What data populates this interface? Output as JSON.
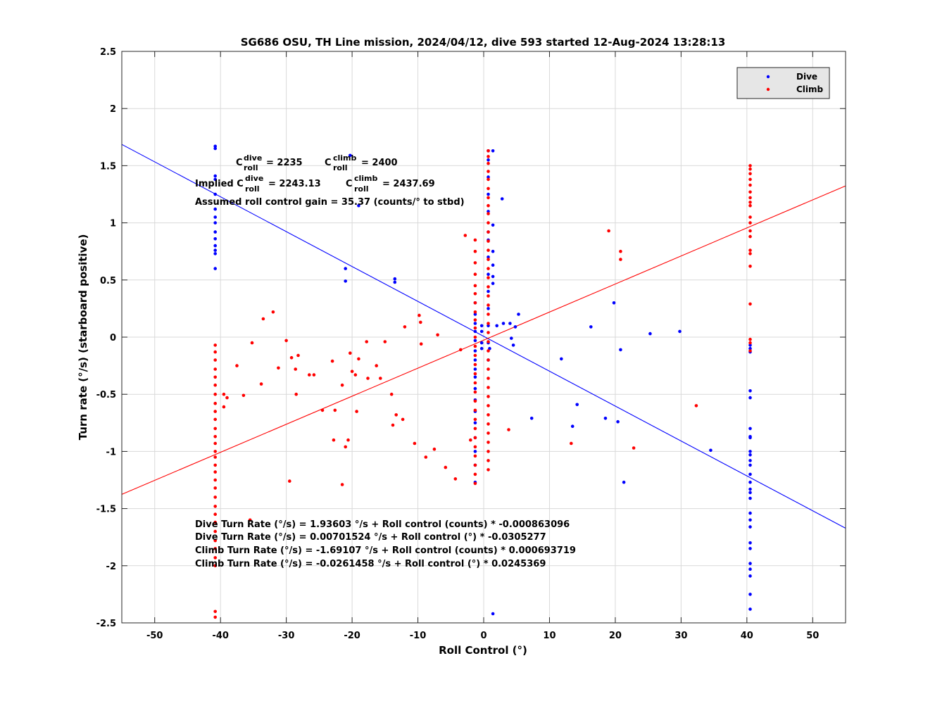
{
  "chart_data": {
    "type": "scatter",
    "title": "SG686 OSU, TH Line mission, 2024/04/12, dive 593 started 12-Aug-2024 13:28:13",
    "xlabel": "Roll Control (°)",
    "ylabel": "Turn rate (°/s) (starboard positive)",
    "xlim": [
      -55,
      55
    ],
    "ylim": [
      -2.5,
      2.5
    ],
    "x_ticks": [
      -50,
      -40,
      -30,
      -20,
      -10,
      0,
      10,
      20,
      30,
      40,
      50
    ],
    "y_ticks": [
      -2.5,
      -2,
      -1.5,
      -1,
      -0.5,
      0,
      0.5,
      1,
      1.5,
      2,
      2.5
    ],
    "grid": true,
    "legend_position": "top-right",
    "annotations": {
      "c_dive_label": "C",
      "c_dive_sup": "dive",
      "c_dive_sub": "roll",
      "c_dive_value": "= 2235",
      "c_climb_label": "C",
      "c_climb_sup": "climb",
      "c_climb_sub": "roll",
      "c_climb_value": "= 2400",
      "implied_prefix": "Implied C",
      "implied_dive_sup": "dive",
      "implied_dive_sub": "roll",
      "implied_dive_value": "= 2243.13",
      "implied_climb_label": "C",
      "implied_climb_sup": "climb",
      "implied_climb_sub": "roll",
      "implied_climb_value": "= 2437.69",
      "gain": "Assumed roll control gain = 35.37 (counts/° to stbd)",
      "eq1": "Dive Turn Rate (°/s) = 1.93603 °/s + Roll control (counts) * -0.000863096",
      "eq2": "Dive Turn Rate (°/s) = 0.00701524 °/s + Roll control (°) * -0.0305277",
      "eq3": "Climb Turn Rate (°/s) = -1.69107 °/s + Roll control (counts) * 0.000693719",
      "eq4": "Climb Turn Rate (°/s) = -0.0261458 °/s + Roll control (°) * 0.0245369"
    },
    "series": [
      {
        "name": "Dive",
        "color": "#0000ff",
        "points": [
          [
            -40.8,
            1.67
          ],
          [
            -40.8,
            1.65
          ],
          [
            -40.8,
            1.41
          ],
          [
            -40.8,
            1.38
          ],
          [
            -40.8,
            1.25
          ],
          [
            -40.8,
            1.12
          ],
          [
            -40.8,
            1.05
          ],
          [
            -40.8,
            1.0
          ],
          [
            -40.8,
            0.92
          ],
          [
            -40.8,
            0.86
          ],
          [
            -40.8,
            0.8
          ],
          [
            -40.8,
            0.76
          ],
          [
            -40.8,
            0.73
          ],
          [
            -40.8,
            0.6
          ],
          [
            -21.0,
            0.6
          ],
          [
            -21.0,
            0.49
          ],
          [
            -20.3,
            1.59
          ],
          [
            -19.0,
            1.15
          ],
          [
            -13.5,
            0.51
          ],
          [
            -13.5,
            0.48
          ],
          [
            -1.3,
            0.3
          ],
          [
            -1.3,
            0.2
          ],
          [
            -1.3,
            0.12
          ],
          [
            -1.3,
            0.05
          ],
          [
            -1.3,
            -0.03
          ],
          [
            -1.3,
            -0.12
          ],
          [
            -1.3,
            -0.2
          ],
          [
            -1.3,
            -0.28
          ],
          [
            -1.3,
            -0.35
          ],
          [
            -1.3,
            -0.45
          ],
          [
            -1.3,
            -0.55
          ],
          [
            -1.3,
            -0.65
          ],
          [
            -1.3,
            -0.75
          ],
          [
            -1.3,
            -0.88
          ],
          [
            -1.3,
            -1.0
          ],
          [
            -1.3,
            -1.12
          ],
          [
            -1.3,
            -1.27
          ],
          [
            -0.3,
            0.1
          ],
          [
            -0.3,
            0.05
          ],
          [
            -0.3,
            -0.05
          ],
          [
            -0.3,
            -0.1
          ],
          [
            0.7,
            1.63
          ],
          [
            0.7,
            1.55
          ],
          [
            0.7,
            1.4
          ],
          [
            0.7,
            1.25
          ],
          [
            0.7,
            1.1
          ],
          [
            0.7,
            0.92
          ],
          [
            0.7,
            0.85
          ],
          [
            0.7,
            0.7
          ],
          [
            0.7,
            0.55
          ],
          [
            0.7,
            0.4
          ],
          [
            0.7,
            0.25
          ],
          [
            0.7,
            0.1
          ],
          [
            0.7,
            -0.05
          ],
          [
            0.7,
            -0.2
          ],
          [
            1.4,
            1.63
          ],
          [
            1.4,
            0.98
          ],
          [
            1.4,
            0.75
          ],
          [
            1.4,
            0.63
          ],
          [
            1.4,
            0.53
          ],
          [
            1.4,
            0.47
          ],
          [
            1.4,
            -2.42
          ],
          [
            0.9,
            -0.1
          ],
          [
            2.0,
            0.1
          ],
          [
            2.8,
            1.21
          ],
          [
            3.0,
            0.12
          ],
          [
            4.0,
            0.12
          ],
          [
            4.2,
            -0.01
          ],
          [
            4.5,
            -0.07
          ],
          [
            4.8,
            0.09
          ],
          [
            5.3,
            0.2
          ],
          [
            7.3,
            -0.71
          ],
          [
            11.8,
            -0.19
          ],
          [
            13.5,
            -0.78
          ],
          [
            14.2,
            -0.59
          ],
          [
            16.3,
            0.09
          ],
          [
            18.5,
            -0.71
          ],
          [
            19.8,
            0.3
          ],
          [
            20.4,
            -0.74
          ],
          [
            20.8,
            -0.11
          ],
          [
            21.3,
            -1.27
          ],
          [
            25.3,
            0.03
          ],
          [
            29.8,
            0.05
          ],
          [
            34.5,
            -0.99
          ],
          [
            40.5,
            -0.07
          ],
          [
            40.5,
            -0.1
          ],
          [
            40.5,
            -0.13
          ],
          [
            40.5,
            -0.47
          ],
          [
            40.5,
            -0.53
          ],
          [
            40.5,
            -0.8
          ],
          [
            40.5,
            -0.87
          ],
          [
            40.5,
            -0.88
          ],
          [
            40.5,
            -1.0
          ],
          [
            40.5,
            -1.03
          ],
          [
            40.5,
            -1.08
          ],
          [
            40.5,
            -1.12
          ],
          [
            40.5,
            -1.2
          ],
          [
            40.5,
            -1.27
          ],
          [
            40.5,
            -1.33
          ],
          [
            40.5,
            -1.36
          ],
          [
            40.5,
            -1.41
          ],
          [
            40.5,
            -1.54
          ],
          [
            40.5,
            -1.6
          ],
          [
            40.5,
            -1.66
          ],
          [
            40.5,
            -1.8
          ],
          [
            40.5,
            -1.85
          ],
          [
            40.5,
            -1.98
          ],
          [
            40.5,
            -2.03
          ],
          [
            40.5,
            -2.09
          ],
          [
            40.5,
            -2.25
          ],
          [
            40.5,
            -2.38
          ]
        ],
        "fit": {
          "intercept": 0.00701524,
          "slope": -0.0305277
        }
      },
      {
        "name": "Climb",
        "color": "#ff0000",
        "points": [
          [
            -40.8,
            -0.07
          ],
          [
            -40.8,
            -0.13
          ],
          [
            -40.8,
            -0.2
          ],
          [
            -40.8,
            -0.28
          ],
          [
            -40.8,
            -0.35
          ],
          [
            -40.8,
            -0.42
          ],
          [
            -40.8,
            -0.5
          ],
          [
            -40.8,
            -0.58
          ],
          [
            -40.8,
            -0.65
          ],
          [
            -40.8,
            -0.72
          ],
          [
            -40.8,
            -0.8
          ],
          [
            -40.8,
            -0.87
          ],
          [
            -40.8,
            -0.93
          ],
          [
            -40.8,
            -1.0
          ],
          [
            -40.8,
            -1.05
          ],
          [
            -40.8,
            -1.12
          ],
          [
            -40.8,
            -1.18
          ],
          [
            -40.8,
            -1.25
          ],
          [
            -40.8,
            -1.32
          ],
          [
            -40.8,
            -1.4
          ],
          [
            -40.8,
            -1.48
          ],
          [
            -40.8,
            -1.55
          ],
          [
            -40.8,
            -1.62
          ],
          [
            -40.8,
            -1.7
          ],
          [
            -40.8,
            -1.78
          ],
          [
            -40.8,
            -1.85
          ],
          [
            -40.8,
            -1.93
          ],
          [
            -40.8,
            -2.0
          ],
          [
            -40.8,
            -2.4
          ],
          [
            -40.8,
            -2.45
          ],
          [
            -39.5,
            -0.5
          ],
          [
            -39.0,
            -0.53
          ],
          [
            -39.5,
            -0.61
          ],
          [
            -37.5,
            -0.25
          ],
          [
            -36.5,
            -0.51
          ],
          [
            -35.5,
            -1.6
          ],
          [
            -35.2,
            -0.05
          ],
          [
            -33.8,
            -0.41
          ],
          [
            -33.5,
            0.16
          ],
          [
            -32.0,
            0.22
          ],
          [
            -31.2,
            -0.27
          ],
          [
            -30.0,
            -0.03
          ],
          [
            -29.5,
            -1.26
          ],
          [
            -29.2,
            -0.18
          ],
          [
            -28.6,
            -0.28
          ],
          [
            -28.5,
            -0.5
          ],
          [
            -28.2,
            -0.16
          ],
          [
            -26.5,
            -0.33
          ],
          [
            -25.8,
            -0.33
          ],
          [
            -24.5,
            -0.64
          ],
          [
            -23.0,
            -0.21
          ],
          [
            -22.8,
            -0.9
          ],
          [
            -22.6,
            -0.64
          ],
          [
            -21.5,
            -1.29
          ],
          [
            -21.5,
            -0.42
          ],
          [
            -21.0,
            -0.96
          ],
          [
            -20.6,
            -0.9
          ],
          [
            -20.3,
            -0.14
          ],
          [
            -20.0,
            -0.3
          ],
          [
            -19.5,
            -0.33
          ],
          [
            -19.3,
            -0.65
          ],
          [
            -19.0,
            -0.19
          ],
          [
            -17.8,
            -0.04
          ],
          [
            -17.6,
            -0.36
          ],
          [
            -16.3,
            -0.25
          ],
          [
            -15.7,
            -0.36
          ],
          [
            -15.0,
            -0.04
          ],
          [
            -14.0,
            -0.5
          ],
          [
            -13.8,
            -0.77
          ],
          [
            -13.3,
            -0.68
          ],
          [
            -12.3,
            -0.72
          ],
          [
            -12.0,
            0.09
          ],
          [
            -10.5,
            -0.93
          ],
          [
            -9.8,
            0.19
          ],
          [
            -9.6,
            0.13
          ],
          [
            -9.5,
            -0.06
          ],
          [
            -8.8,
            -1.05
          ],
          [
            -7.5,
            -0.98
          ],
          [
            -7.0,
            0.02
          ],
          [
            -5.8,
            -1.14
          ],
          [
            -4.3,
            -1.24
          ],
          [
            -3.5,
            -0.11
          ],
          [
            -2.8,
            0.89
          ],
          [
            -2.0,
            -0.9
          ],
          [
            -1.3,
            0.85
          ],
          [
            -1.3,
            0.75
          ],
          [
            -1.3,
            0.65
          ],
          [
            -1.3,
            0.55
          ],
          [
            -1.3,
            0.45
          ],
          [
            -1.3,
            0.38
          ],
          [
            -1.3,
            0.3
          ],
          [
            -1.3,
            0.22
          ],
          [
            -1.3,
            0.15
          ],
          [
            -1.3,
            0.08
          ],
          [
            -1.3,
            0.0
          ],
          [
            -1.3,
            -0.08
          ],
          [
            -1.3,
            -0.16
          ],
          [
            -1.3,
            -0.24
          ],
          [
            -1.3,
            -0.32
          ],
          [
            -1.3,
            -0.4
          ],
          [
            -1.3,
            -0.48
          ],
          [
            -1.3,
            -0.56
          ],
          [
            -1.3,
            -0.64
          ],
          [
            -1.3,
            -0.72
          ],
          [
            -1.3,
            -0.8
          ],
          [
            -1.3,
            -0.88
          ],
          [
            -1.3,
            -0.96
          ],
          [
            -1.3,
            -1.04
          ],
          [
            -1.3,
            -1.12
          ],
          [
            -1.3,
            -1.2
          ],
          [
            -1.3,
            -1.28
          ],
          [
            0.7,
            1.63
          ],
          [
            0.7,
            1.58
          ],
          [
            0.7,
            1.52
          ],
          [
            0.7,
            1.45
          ],
          [
            0.7,
            1.38
          ],
          [
            0.7,
            1.3
          ],
          [
            0.7,
            1.22
          ],
          [
            0.7,
            1.15
          ],
          [
            0.7,
            1.08
          ],
          [
            0.7,
            1.0
          ],
          [
            0.7,
            0.92
          ],
          [
            0.7,
            0.84
          ],
          [
            0.7,
            0.76
          ],
          [
            0.7,
            0.68
          ],
          [
            0.7,
            0.6
          ],
          [
            0.7,
            0.52
          ],
          [
            0.7,
            0.44
          ],
          [
            0.7,
            0.36
          ],
          [
            0.7,
            0.28
          ],
          [
            0.7,
            0.2
          ],
          [
            0.7,
            0.12
          ],
          [
            0.7,
            0.04
          ],
          [
            0.7,
            -0.04
          ],
          [
            0.7,
            -0.12
          ],
          [
            0.7,
            -0.2
          ],
          [
            0.7,
            -0.28
          ],
          [
            0.7,
            -0.36
          ],
          [
            0.7,
            -0.44
          ],
          [
            0.7,
            -0.52
          ],
          [
            0.7,
            -0.6
          ],
          [
            0.7,
            -0.68
          ],
          [
            0.7,
            -0.76
          ],
          [
            0.7,
            -0.84
          ],
          [
            0.7,
            -0.92
          ],
          [
            0.7,
            -1.0
          ],
          [
            0.7,
            -1.08
          ],
          [
            0.7,
            -1.16
          ],
          [
            3.8,
            -0.81
          ],
          [
            13.3,
            -0.93
          ],
          [
            19.0,
            0.93
          ],
          [
            20.8,
            0.75
          ],
          [
            20.8,
            0.68
          ],
          [
            22.8,
            -0.97
          ],
          [
            32.3,
            -0.6
          ],
          [
            40.5,
            1.5
          ],
          [
            40.5,
            1.47
          ],
          [
            40.5,
            1.43
          ],
          [
            40.5,
            1.38
          ],
          [
            40.5,
            1.33
          ],
          [
            40.5,
            1.27
          ],
          [
            40.5,
            1.22
          ],
          [
            40.5,
            1.18
          ],
          [
            40.5,
            1.15
          ],
          [
            40.5,
            1.05
          ],
          [
            40.5,
            1.0
          ],
          [
            40.5,
            0.93
          ],
          [
            40.5,
            0.88
          ],
          [
            40.5,
            0.76
          ],
          [
            40.5,
            0.73
          ],
          [
            40.5,
            0.62
          ],
          [
            40.5,
            0.29
          ],
          [
            40.5,
            -0.02
          ],
          [
            40.5,
            -0.05
          ],
          [
            40.5,
            -0.12
          ]
        ],
        "fit": {
          "intercept": -0.0261458,
          "slope": 0.0245369
        }
      }
    ]
  }
}
